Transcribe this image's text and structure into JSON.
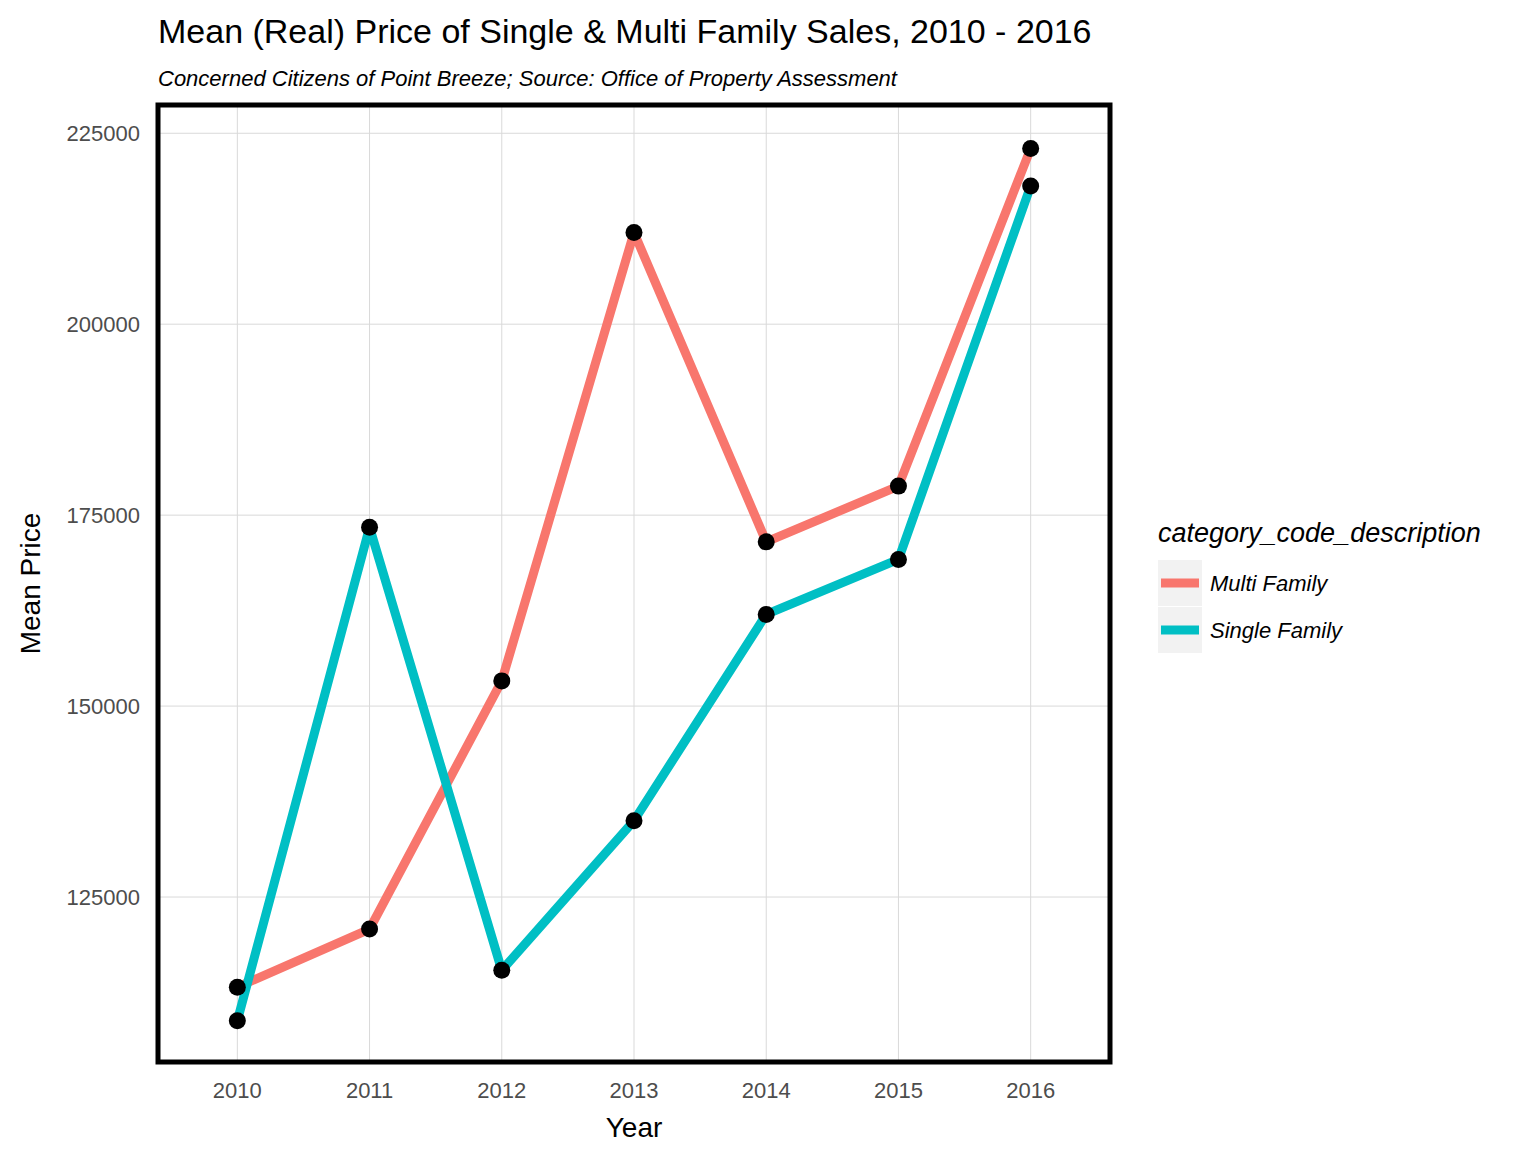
{
  "chart_data": {
    "type": "line",
    "title": "Mean (Real) Price of Single & Multi Family Sales, 2010 - 2016",
    "subtitle": "Concerned Citizens of Point Breeze; Source: Office of Property Assessment",
    "x_label": "Year",
    "y_label": "Mean Price",
    "legend_title": "category_code_description",
    "x": [
      2010,
      2011,
      2012,
      2013,
      2014,
      2015,
      2016
    ],
    "xlim": [
      2009.4,
      2016.6
    ],
    "xticks": [
      2010,
      2011,
      2012,
      2013,
      2014,
      2015,
      2016
    ],
    "ylim": [
      103400,
      228700
    ],
    "yticks": [
      125000,
      150000,
      175000,
      200000,
      225000
    ],
    "grid": true,
    "legend": "right",
    "marker": "circle",
    "series": [
      {
        "name": "Multi Family",
        "color": "#F8766D",
        "values": [
          113200,
          120800,
          153300,
          212000,
          171500,
          178800,
          223000
        ]
      },
      {
        "name": "Single Family",
        "color": "#00BFC4",
        "values": [
          108800,
          173400,
          115400,
          135000,
          162000,
          169200,
          218100
        ]
      }
    ]
  }
}
